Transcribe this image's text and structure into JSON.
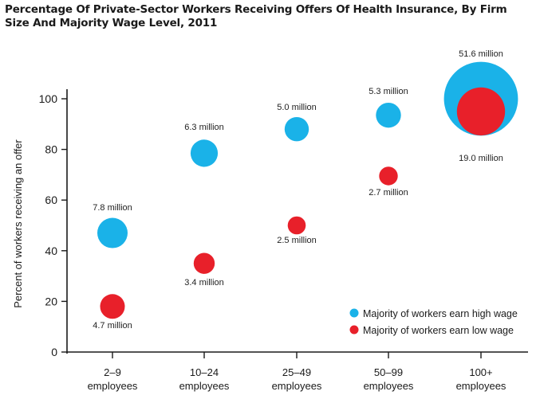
{
  "title": "Percentage Of Private-Sector Workers Receiving Offers Of Health Insurance, By Firm Size And Majority Wage Level, 2011",
  "chart_data": {
    "type": "scatter",
    "bubble": true,
    "title": "Percentage Of Private-Sector Workers Receiving Offers Of Health Insurance, By Firm Size And Majority Wage Level, 2011",
    "xlabel": "",
    "ylabel": "Percent of workers receiving an offer",
    "ylim": [
      0,
      100
    ],
    "yticks": [
      0,
      20,
      40,
      60,
      80,
      100
    ],
    "categories": [
      {
        "line1": "2–9",
        "line2": "employees"
      },
      {
        "line1": "10–24",
        "line2": "employees"
      },
      {
        "line1": "25–49",
        "line2": "employees"
      },
      {
        "line1": "50–99",
        "line2": "employees"
      },
      {
        "line1": "100+",
        "line2": "employees"
      }
    ],
    "series": [
      {
        "name": "Majority of workers earn high wage",
        "color": "#1ab2e8",
        "values": [
          47,
          78.5,
          88,
          93.5,
          100
        ],
        "sizes_millions": [
          7.8,
          6.3,
          5.0,
          5.3,
          51.6
        ],
        "labels": [
          "7.8 million",
          "6.3 million",
          "5.0 million",
          "5.3 million",
          "51.6 million"
        ]
      },
      {
        "name": "Majority of workers earn low wage",
        "color": "#e8202a",
        "values": [
          18,
          35,
          50,
          69.5,
          95
        ],
        "sizes_millions": [
          4.7,
          3.4,
          2.5,
          2.7,
          19.0
        ],
        "labels": [
          "4.7 million",
          "3.4 million",
          "2.5 million",
          "2.7 million",
          "19.0 million"
        ]
      }
    ],
    "legend_position": "bottom-right"
  }
}
